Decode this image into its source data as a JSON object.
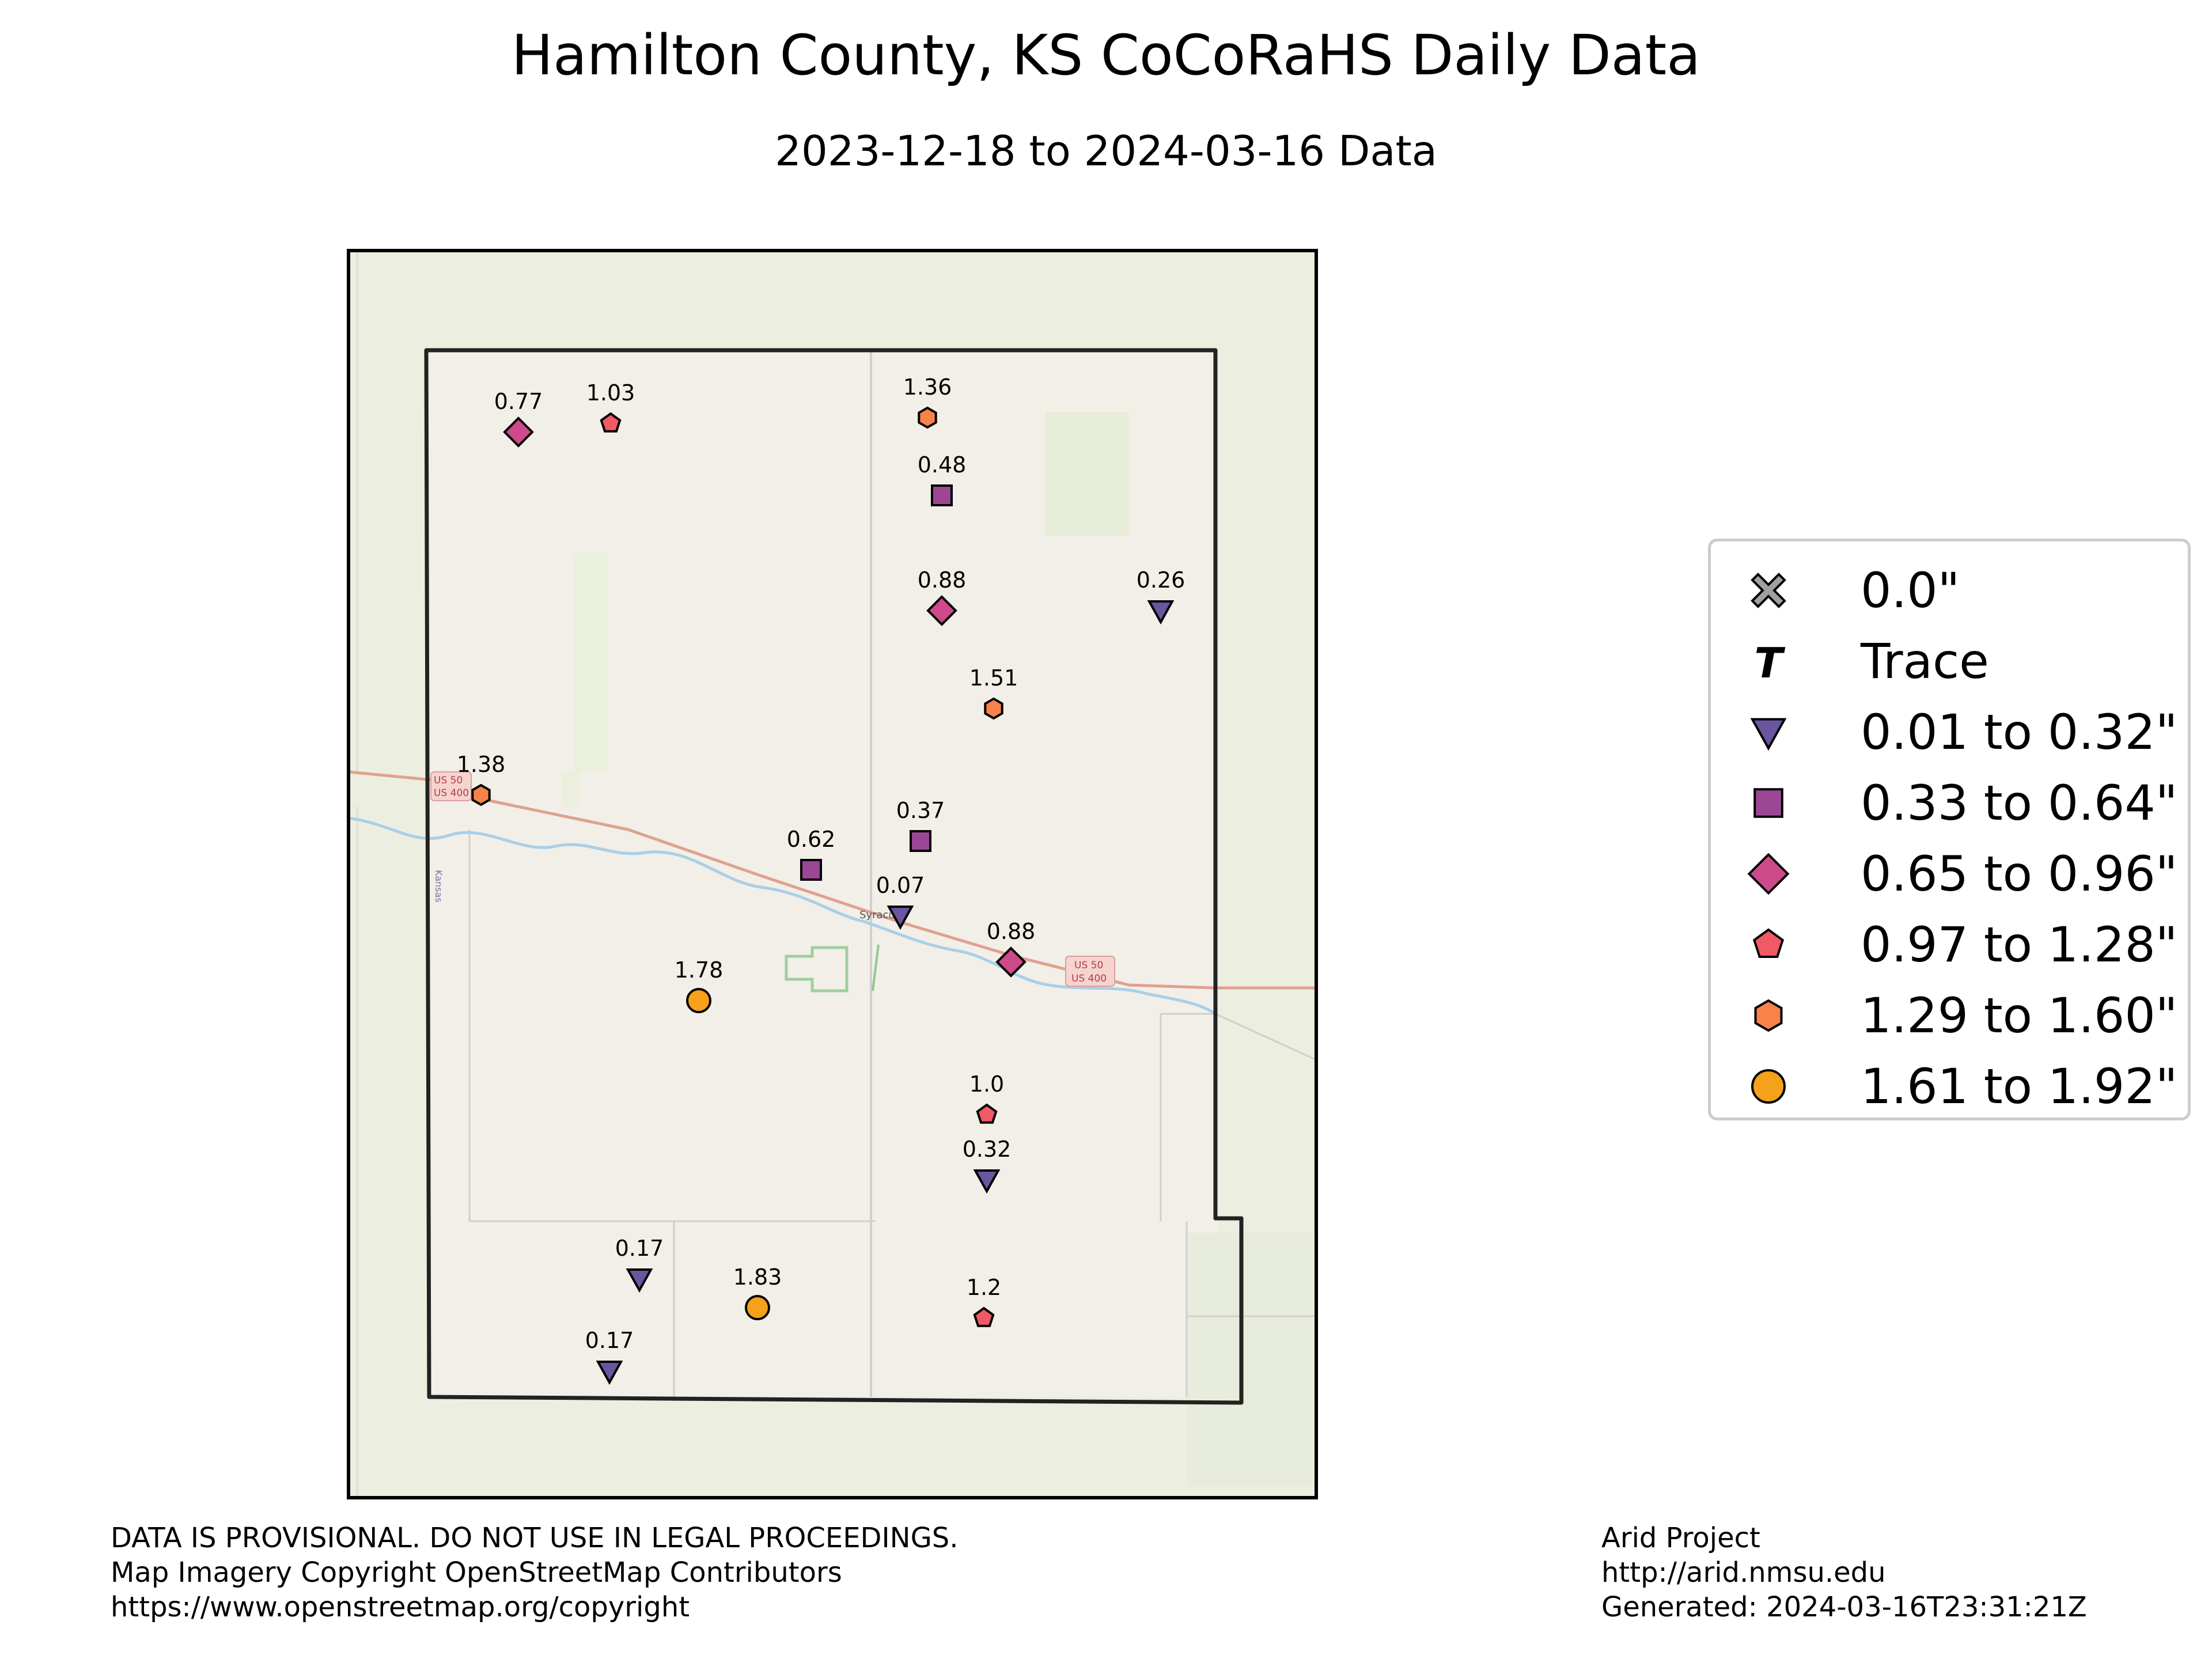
{
  "title": "Hamilton County, KS CoCoRaHS Daily Data",
  "subtitle": "2023-12-18 to 2024-03-16 Data",
  "basemap_labels": {
    "highway_shield_west": [
      "US 50",
      "US 400"
    ],
    "highway_shield_east": [
      "US 50",
      "US 400"
    ],
    "town": "Syracuse",
    "state_line_label": "Kansas"
  },
  "legend": [
    {
      "symbol": "x-icon",
      "label": "0.0\"",
      "color": "#a0a0a0"
    },
    {
      "symbol": "trace-t-icon",
      "label": "Trace",
      "glyph": "T",
      "color": "#000000"
    },
    {
      "symbol": "triangle-down-icon",
      "label": "0.01 to 0.32\"",
      "color": "#6a55a0"
    },
    {
      "symbol": "square-icon",
      "label": "0.33 to 0.64\"",
      "color": "#9b4796"
    },
    {
      "symbol": "diamond-icon",
      "label": "0.65 to 0.96\"",
      "color": "#cf4a8a"
    },
    {
      "symbol": "pentagon-icon",
      "label": "0.97 to 1.28\"",
      "color": "#f05a66"
    },
    {
      "symbol": "hexagon-icon",
      "label": "1.29 to 1.60\"",
      "color": "#f7834a"
    },
    {
      "symbol": "circle-icon",
      "label": "1.61 to 1.92\"",
      "color": "#f5a11c"
    }
  ],
  "stations": [
    {
      "label": "0.77",
      "value": 0.77
    },
    {
      "label": "1.03",
      "value": 1.03
    },
    {
      "label": "1.36",
      "value": 1.36
    },
    {
      "label": "0.48",
      "value": 0.48
    },
    {
      "label": "0.88",
      "value": 0.88
    },
    {
      "label": "0.26",
      "value": 0.26
    },
    {
      "label": "1.51",
      "value": 1.51
    },
    {
      "label": "1.38",
      "value": 1.38
    },
    {
      "label": "0.62",
      "value": 0.62
    },
    {
      "label": "0.37",
      "value": 0.37
    },
    {
      "label": "0.07",
      "value": 0.07
    },
    {
      "label": "0.88",
      "value": 0.88
    },
    {
      "label": "1.78",
      "value": 1.78
    },
    {
      "label": "1.0",
      "value": 1.0
    },
    {
      "label": "0.32",
      "value": 0.32
    },
    {
      "label": "0.17",
      "value": 0.17
    },
    {
      "label": "1.83",
      "value": 1.83
    },
    {
      "label": "1.2",
      "value": 1.2
    },
    {
      "label": "0.17",
      "value": 0.17
    }
  ],
  "footer_left": [
    "DATA IS PROVISIONAL. DO NOT USE IN LEGAL PROCEEDINGS.",
    "Map Imagery Copyright OpenStreetMap Contributors",
    "https://www.openstreetmap.org/copyright"
  ],
  "footer_right": [
    "Arid Project",
    "http://arid.nmsu.edu",
    "Generated: 2024-03-16T23:31:21Z"
  ]
}
